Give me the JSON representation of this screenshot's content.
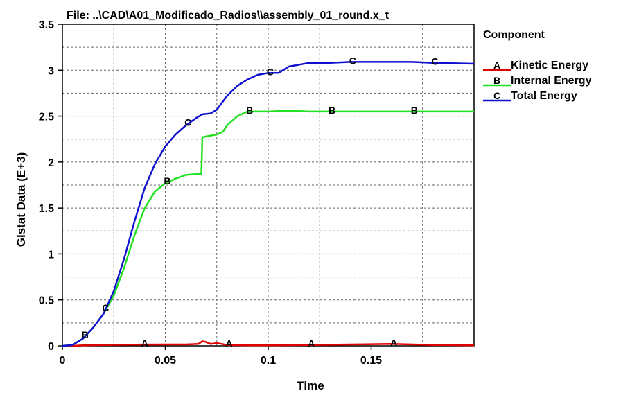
{
  "chart_data": {
    "type": "line",
    "title": "File: ..\\CAD\\A01_Modificado_Radios\\\\assembly_01_round.x_t",
    "xlabel": "Time",
    "ylabel": "Glstat Data (E+3)",
    "xlim": [
      0,
      0.2
    ],
    "ylim": [
      0,
      3.5
    ],
    "x_ticks": [
      "0",
      "0.05",
      "0.1",
      "0.15"
    ],
    "y_ticks": [
      "0",
      "0.5",
      "1",
      "1.5",
      "2",
      "2.5",
      "3",
      "3.5"
    ],
    "grid": true,
    "legend_title": "Component",
    "legend_position": "right",
    "series": [
      {
        "name": "Kinetic Energy",
        "marker": "A",
        "color": "#e00000",
        "x": [
          0,
          0.005,
          0.01,
          0.02,
          0.03,
          0.04,
          0.05,
          0.06,
          0.066,
          0.068,
          0.07,
          0.072,
          0.075,
          0.08,
          0.09,
          0.1,
          0.12,
          0.14,
          0.16,
          0.18,
          0.2
        ],
        "y": [
          0,
          0,
          0.005,
          0.01,
          0.012,
          0.014,
          0.015,
          0.015,
          0.02,
          0.05,
          0.04,
          0.02,
          0.03,
          0.01,
          0.005,
          0.005,
          0.01,
          0.015,
          0.02,
          0.01,
          0.005
        ],
        "markers_at": [
          0.04,
          0.081,
          0.121,
          0.161
        ]
      },
      {
        "name": "Internal Energy",
        "marker": "B",
        "color": "#22e022",
        "x": [
          0,
          0.005,
          0.01,
          0.015,
          0.02,
          0.025,
          0.03,
          0.035,
          0.04,
          0.045,
          0.05,
          0.055,
          0.06,
          0.065,
          0.0675,
          0.068,
          0.07,
          0.075,
          0.078,
          0.08,
          0.085,
          0.09,
          0.1,
          0.11,
          0.12,
          0.14,
          0.16,
          0.18,
          0.2
        ],
        "y": [
          0,
          0.01,
          0.08,
          0.2,
          0.35,
          0.55,
          0.85,
          1.2,
          1.5,
          1.68,
          1.77,
          1.82,
          1.86,
          1.87,
          1.87,
          2.27,
          2.28,
          2.3,
          2.33,
          2.4,
          2.5,
          2.55,
          2.55,
          2.56,
          2.55,
          2.55,
          2.55,
          2.55,
          2.55
        ],
        "markers_at": [
          0.011,
          0.051,
          0.091,
          0.131,
          0.171
        ]
      },
      {
        "name": "Total Energy",
        "marker": "C",
        "color": "#1010d0",
        "x": [
          0,
          0.005,
          0.01,
          0.015,
          0.02,
          0.025,
          0.03,
          0.035,
          0.04,
          0.045,
          0.05,
          0.055,
          0.06,
          0.065,
          0.068,
          0.072,
          0.075,
          0.08,
          0.085,
          0.09,
          0.095,
          0.1,
          0.105,
          0.11,
          0.12,
          0.13,
          0.14,
          0.15,
          0.16,
          0.17,
          0.18,
          0.2
        ],
        "y": [
          0,
          0.01,
          0.08,
          0.2,
          0.35,
          0.6,
          0.95,
          1.35,
          1.72,
          1.98,
          2.17,
          2.3,
          2.4,
          2.48,
          2.52,
          2.53,
          2.57,
          2.72,
          2.83,
          2.9,
          2.95,
          2.97,
          2.97,
          3.04,
          3.08,
          3.08,
          3.09,
          3.09,
          3.09,
          3.09,
          3.08,
          3.07
        ],
        "markers_at": [
          0.021,
          0.061,
          0.101,
          0.141,
          0.181
        ]
      }
    ]
  }
}
